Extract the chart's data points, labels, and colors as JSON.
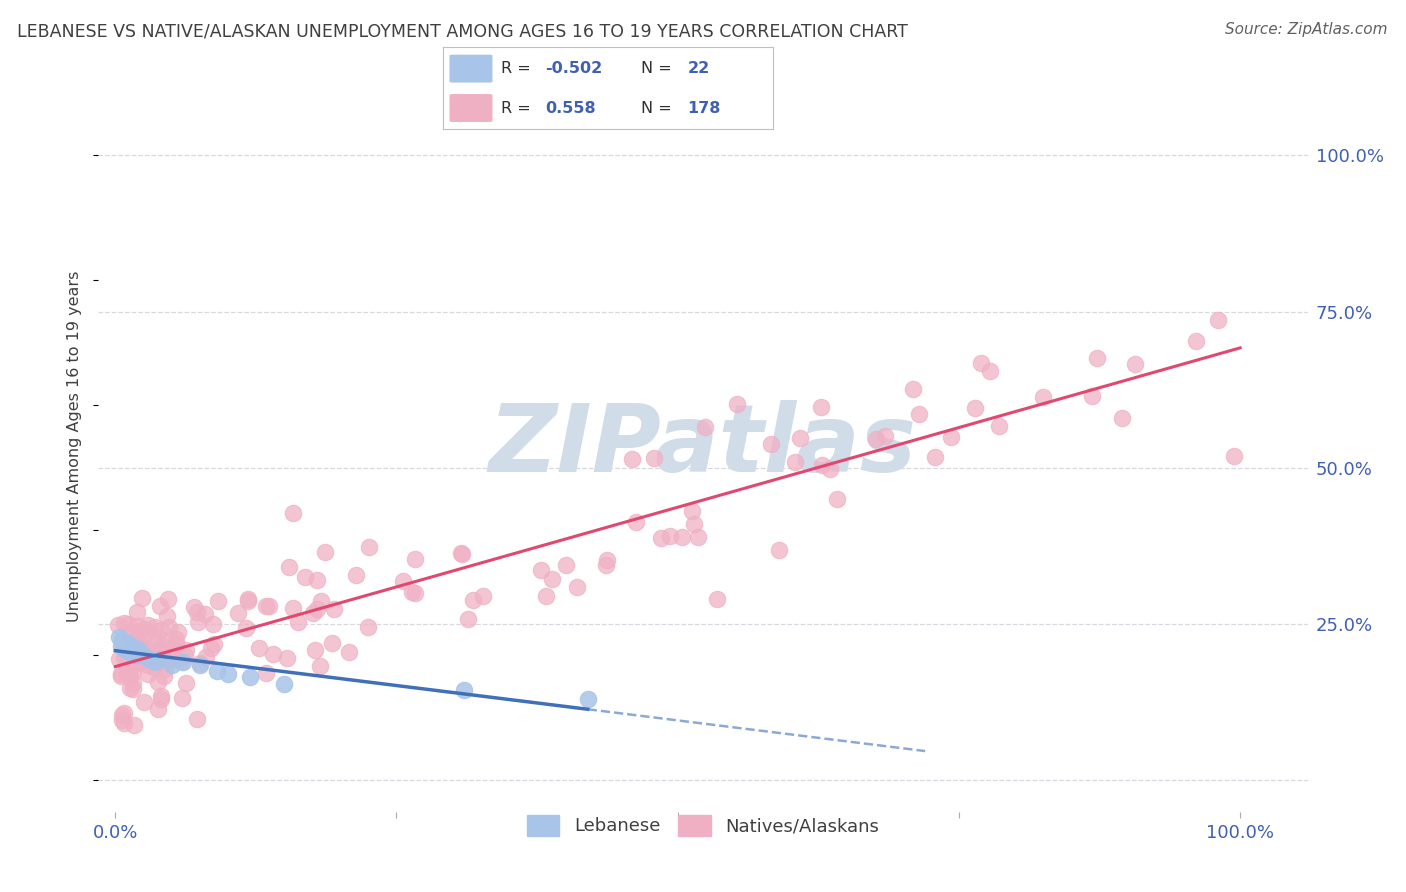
{
  "title": "LEBANESE VS NATIVE/ALASKAN UNEMPLOYMENT AMONG AGES 16 TO 19 YEARS CORRELATION CHART",
  "source": "Source: ZipAtlas.com",
  "ylabel": "Unemployment Among Ages 16 to 19 years",
  "legend_label1": "Lebanese",
  "legend_label2": "Natives/Alaskans",
  "color_lebanese": "#a8c4e8",
  "color_native": "#f0b0c4",
  "color_line_lebanese": "#4070b8",
  "color_line_native": "#e04870",
  "watermark_text": "ZIPatlas",
  "watermark_color": "#d0dce8",
  "title_color": "#404040",
  "axis_label_color": "#4060b0",
  "background_color": "#ffffff",
  "grid_color": "#d8d8e0",
  "r_value_color": "#4060b0",
  "legend_r1": "-0.502",
  "legend_n1": "22",
  "legend_r2": "0.558",
  "legend_n2": "178"
}
